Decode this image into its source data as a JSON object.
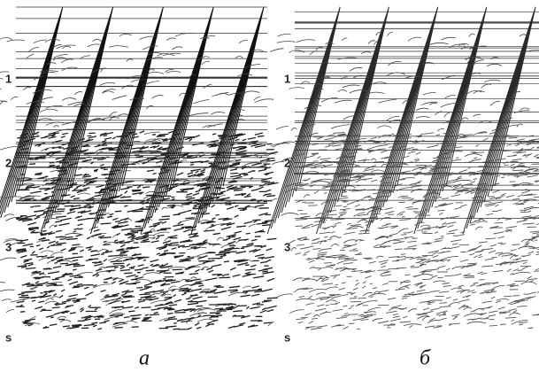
{
  "panels": [
    {
      "time_labels": [
        "1",
        "2",
        "3"
      ],
      "unit": "s",
      "caption": "а"
    },
    {
      "time_labels": [
        "1",
        "2",
        "3"
      ],
      "unit": "s",
      "caption": "б"
    }
  ]
}
